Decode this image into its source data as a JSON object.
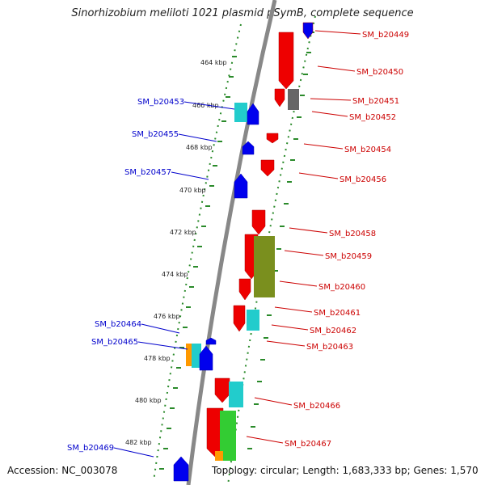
{
  "title": "Sinorhizobium meliloti 1021 plasmid pSymB, complete sequence",
  "accession": "Accession: NC_003078",
  "topology": "Topology: circular; Length: 1,683,333 bp; Genes: 1,570",
  "colors": {
    "backbone": "#888888",
    "tick": "#2a8a2a",
    "forward": "#ee0000",
    "reverse": "#0000ee",
    "cyan": "#22cccc",
    "olive": "#7a8f1e",
    "green": "#33cc33",
    "orange": "#ff9900",
    "gray": "#666666"
  },
  "ruler_labels": [
    {
      "text": "464 kbp"
    },
    {
      "text": "466 kbp"
    },
    {
      "text": "468 kbp"
    },
    {
      "text": "470 kbp"
    },
    {
      "text": "472 kbp"
    },
    {
      "text": "474 kbp"
    },
    {
      "text": "476 kbp"
    },
    {
      "text": "478 kbp"
    },
    {
      "text": "480 kbp"
    },
    {
      "text": "482 kbp"
    }
  ],
  "left_genes": [
    "SM_b20453",
    "SM_b20455",
    "SM_b20457",
    "SM_b20464",
    "SM_b20465",
    "SM_b20469"
  ],
  "right_genes": [
    "SM_b20449",
    "SM_b20450",
    "SM_b20451",
    "SM_b20452",
    "SM_b20454",
    "SM_b20456",
    "SM_b20458",
    "SM_b20459",
    "SM_b20460",
    "SM_b20461",
    "SM_b20462",
    "SM_b20463",
    "SM_b20466",
    "SM_b20467"
  ]
}
